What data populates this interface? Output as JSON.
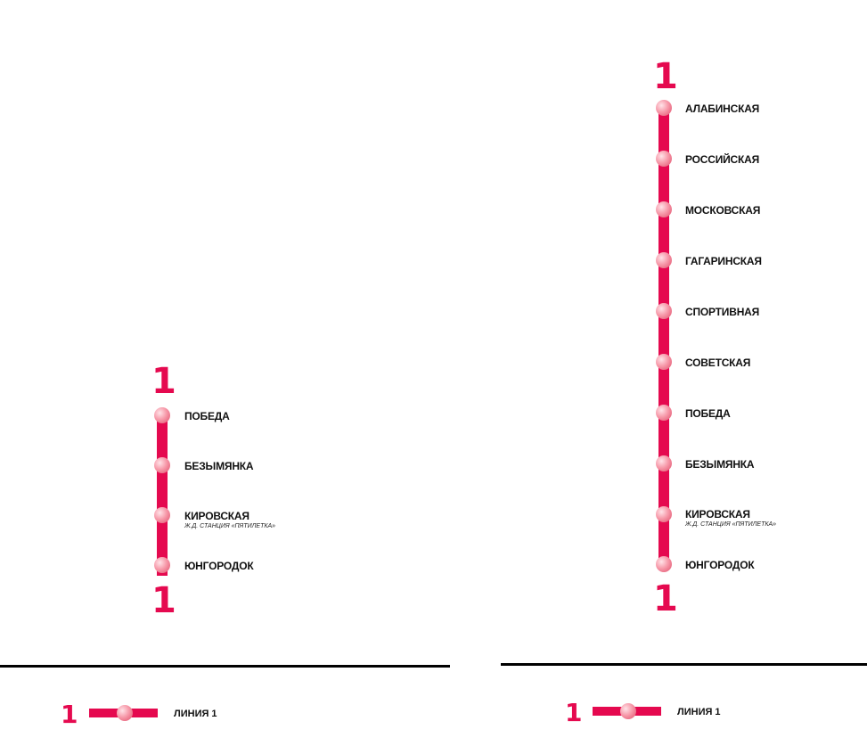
{
  "colors": {
    "line": "#e5094f",
    "text": "#111111",
    "background": "#ffffff"
  },
  "left_map": {
    "line_number_top": "1",
    "line_number_bottom": "1",
    "stations": [
      {
        "name": "ПОБЕДА",
        "note": ""
      },
      {
        "name": "БЕЗЫМЯНКА",
        "note": ""
      },
      {
        "name": "КИРОВСКАЯ",
        "note": "Ж.Д. СТАНЦИЯ «ПЯТИЛЕТКА»"
      },
      {
        "name": "ЮНГОРОДОК",
        "note": ""
      }
    ],
    "legend": {
      "number": "1",
      "label": "ЛИНИЯ 1"
    }
  },
  "right_map": {
    "line_number_top": "1",
    "line_number_bottom": "1",
    "stations": [
      {
        "name": "АЛАБИНСКАЯ",
        "note": ""
      },
      {
        "name": "РОССИЙСКАЯ",
        "note": ""
      },
      {
        "name": "МОСКОВСКАЯ",
        "note": ""
      },
      {
        "name": "ГАГАРИНСКАЯ",
        "note": ""
      },
      {
        "name": "СПОРТИВНАЯ",
        "note": ""
      },
      {
        "name": "СОВЕТСКАЯ",
        "note": ""
      },
      {
        "name": "ПОБЕДА",
        "note": ""
      },
      {
        "name": "БЕЗЫМЯНКА",
        "note": ""
      },
      {
        "name": "КИРОВСКАЯ",
        "note": "Ж.Д. СТАНЦИЯ «ПЯТИЛЕТКА»"
      },
      {
        "name": "ЮНГОРОДОК",
        "note": ""
      }
    ],
    "legend": {
      "number": "1",
      "label": "ЛИНИЯ 1"
    }
  }
}
